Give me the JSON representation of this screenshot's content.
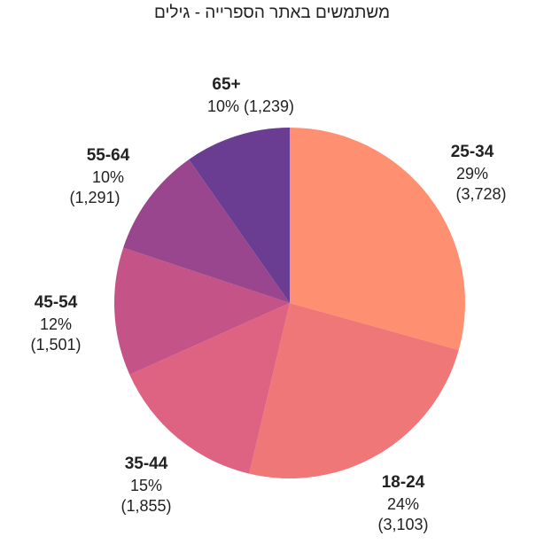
{
  "chart_data": {
    "type": "pie",
    "title": "משתמשים באתר הספרייה - גילים",
    "slices": [
      {
        "category": "25-34",
        "value": 3728,
        "percent": "29%",
        "count": "(3,728)",
        "color": "#fe9071"
      },
      {
        "category": "18-24",
        "value": 3103,
        "percent": "24%",
        "count": "(3,103)",
        "color": "#ef7778"
      },
      {
        "category": "35-44",
        "value": 1855,
        "percent": "15%",
        "count": "(1,855)",
        "color": "#de6282"
      },
      {
        "category": "45-54",
        "value": 1501,
        "percent": "12%",
        "count": "(1,501)",
        "color": "#c45487"
      },
      {
        "category": "55-64",
        "value": 1291,
        "percent": "10%",
        "count": "(1,291)",
        "color": "#9a468e"
      },
      {
        "category": "65+",
        "value": 1239,
        "percent": "10%",
        "count": "(1,239)",
        "color": "#6a3d92"
      }
    ]
  }
}
